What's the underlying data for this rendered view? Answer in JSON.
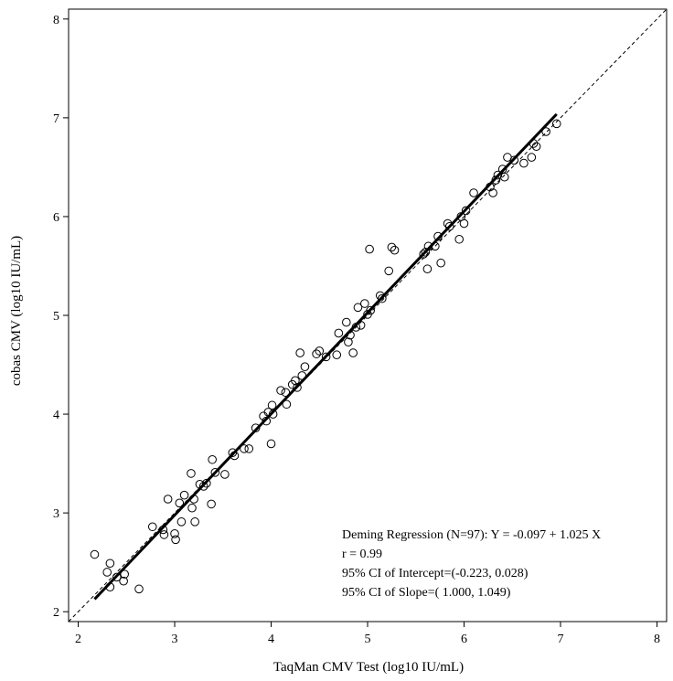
{
  "chart_data": {
    "type": "scatter",
    "title": "",
    "xlabel": "TaqMan CMV Test (log10 IU/mL)",
    "ylabel": "cobas CMV (log10 IU/mL)",
    "xlim": [
      1.9,
      8.1
    ],
    "ylim": [
      1.9,
      8.1
    ],
    "xticks": [
      "2",
      "3",
      "4",
      "5",
      "6",
      "7",
      "8"
    ],
    "yticks": [
      "2",
      "3",
      "4",
      "5",
      "6",
      "7",
      "8"
    ],
    "grid": false,
    "identity_line": {
      "style": "dashed",
      "from": [
        1.9,
        1.9
      ],
      "to": [
        8.1,
        8.1
      ]
    },
    "regression_line": {
      "intercept": -0.097,
      "slope": 1.025,
      "x_range": [
        2.17,
        6.96
      ]
    },
    "annotations": [
      "Deming Regression (N=97): Y = -0.097 + 1.025 X",
      "r = 0.99",
      "95% CI of Intercept=(-0.223,  0.028)",
      "95% CI of Slope=( 1.000,  1.049)"
    ],
    "points": [
      [
        2.17,
        2.58
      ],
      [
        2.3,
        2.4
      ],
      [
        2.33,
        2.49
      ],
      [
        2.33,
        2.25
      ],
      [
        2.4,
        2.35
      ],
      [
        2.47,
        2.31
      ],
      [
        2.48,
        2.38
      ],
      [
        2.63,
        2.23
      ],
      [
        2.77,
        2.86
      ],
      [
        2.88,
        2.83
      ],
      [
        2.89,
        2.78
      ],
      [
        2.93,
        3.14
      ],
      [
        3.0,
        2.79
      ],
      [
        3.01,
        2.73
      ],
      [
        3.05,
        3.1
      ],
      [
        3.07,
        2.91
      ],
      [
        3.1,
        3.18
      ],
      [
        3.17,
        3.4
      ],
      [
        3.18,
        3.05
      ],
      [
        3.2,
        3.14
      ],
      [
        3.21,
        2.91
      ],
      [
        3.26,
        3.29
      ],
      [
        3.3,
        3.27
      ],
      [
        3.33,
        3.3
      ],
      [
        3.38,
        3.09
      ],
      [
        3.39,
        3.54
      ],
      [
        3.42,
        3.41
      ],
      [
        3.52,
        3.39
      ],
      [
        3.6,
        3.61
      ],
      [
        3.62,
        3.58
      ],
      [
        3.72,
        3.65
      ],
      [
        3.77,
        3.65
      ],
      [
        3.84,
        3.86
      ],
      [
        3.92,
        3.98
      ],
      [
        3.95,
        3.93
      ],
      [
        3.97,
        4.02
      ],
      [
        4.0,
        3.7
      ],
      [
        4.01,
        4.09
      ],
      [
        4.02,
        4.0
      ],
      [
        4.1,
        4.24
      ],
      [
        4.15,
        4.22
      ],
      [
        4.16,
        4.1
      ],
      [
        4.22,
        4.3
      ],
      [
        4.25,
        4.34
      ],
      [
        4.27,
        4.27
      ],
      [
        4.3,
        4.62
      ],
      [
        4.32,
        4.39
      ],
      [
        4.35,
        4.48
      ],
      [
        4.47,
        4.61
      ],
      [
        4.5,
        4.64
      ],
      [
        4.57,
        4.58
      ],
      [
        4.68,
        4.6
      ],
      [
        4.7,
        4.82
      ],
      [
        4.78,
        4.93
      ],
      [
        4.8,
        4.73
      ],
      [
        4.82,
        4.8
      ],
      [
        4.85,
        4.62
      ],
      [
        4.88,
        4.88
      ],
      [
        4.9,
        5.08
      ],
      [
        4.93,
        4.9
      ],
      [
        4.97,
        5.12
      ],
      [
        5.0,
        5.01
      ],
      [
        5.02,
        5.67
      ],
      [
        5.03,
        5.05
      ],
      [
        5.13,
        5.2
      ],
      [
        5.15,
        5.17
      ],
      [
        5.22,
        5.45
      ],
      [
        5.25,
        5.69
      ],
      [
        5.28,
        5.66
      ],
      [
        5.58,
        5.62
      ],
      [
        5.6,
        5.64
      ],
      [
        5.62,
        5.47
      ],
      [
        5.63,
        5.7
      ],
      [
        5.7,
        5.7
      ],
      [
        5.73,
        5.8
      ],
      [
        5.76,
        5.53
      ],
      [
        5.83,
        5.93
      ],
      [
        5.85,
        5.9
      ],
      [
        5.95,
        5.77
      ],
      [
        5.97,
        6.0
      ],
      [
        6.0,
        5.93
      ],
      [
        6.02,
        6.06
      ],
      [
        6.1,
        6.24
      ],
      [
        6.27,
        6.3
      ],
      [
        6.3,
        6.24
      ],
      [
        6.33,
        6.37
      ],
      [
        6.35,
        6.42
      ],
      [
        6.4,
        6.48
      ],
      [
        6.42,
        6.4
      ],
      [
        6.45,
        6.6
      ],
      [
        6.52,
        6.57
      ],
      [
        6.62,
        6.54
      ],
      [
        6.7,
        6.6
      ],
      [
        6.72,
        6.74
      ],
      [
        6.75,
        6.71
      ],
      [
        6.85,
        6.86
      ],
      [
        6.96,
        6.94
      ]
    ]
  }
}
